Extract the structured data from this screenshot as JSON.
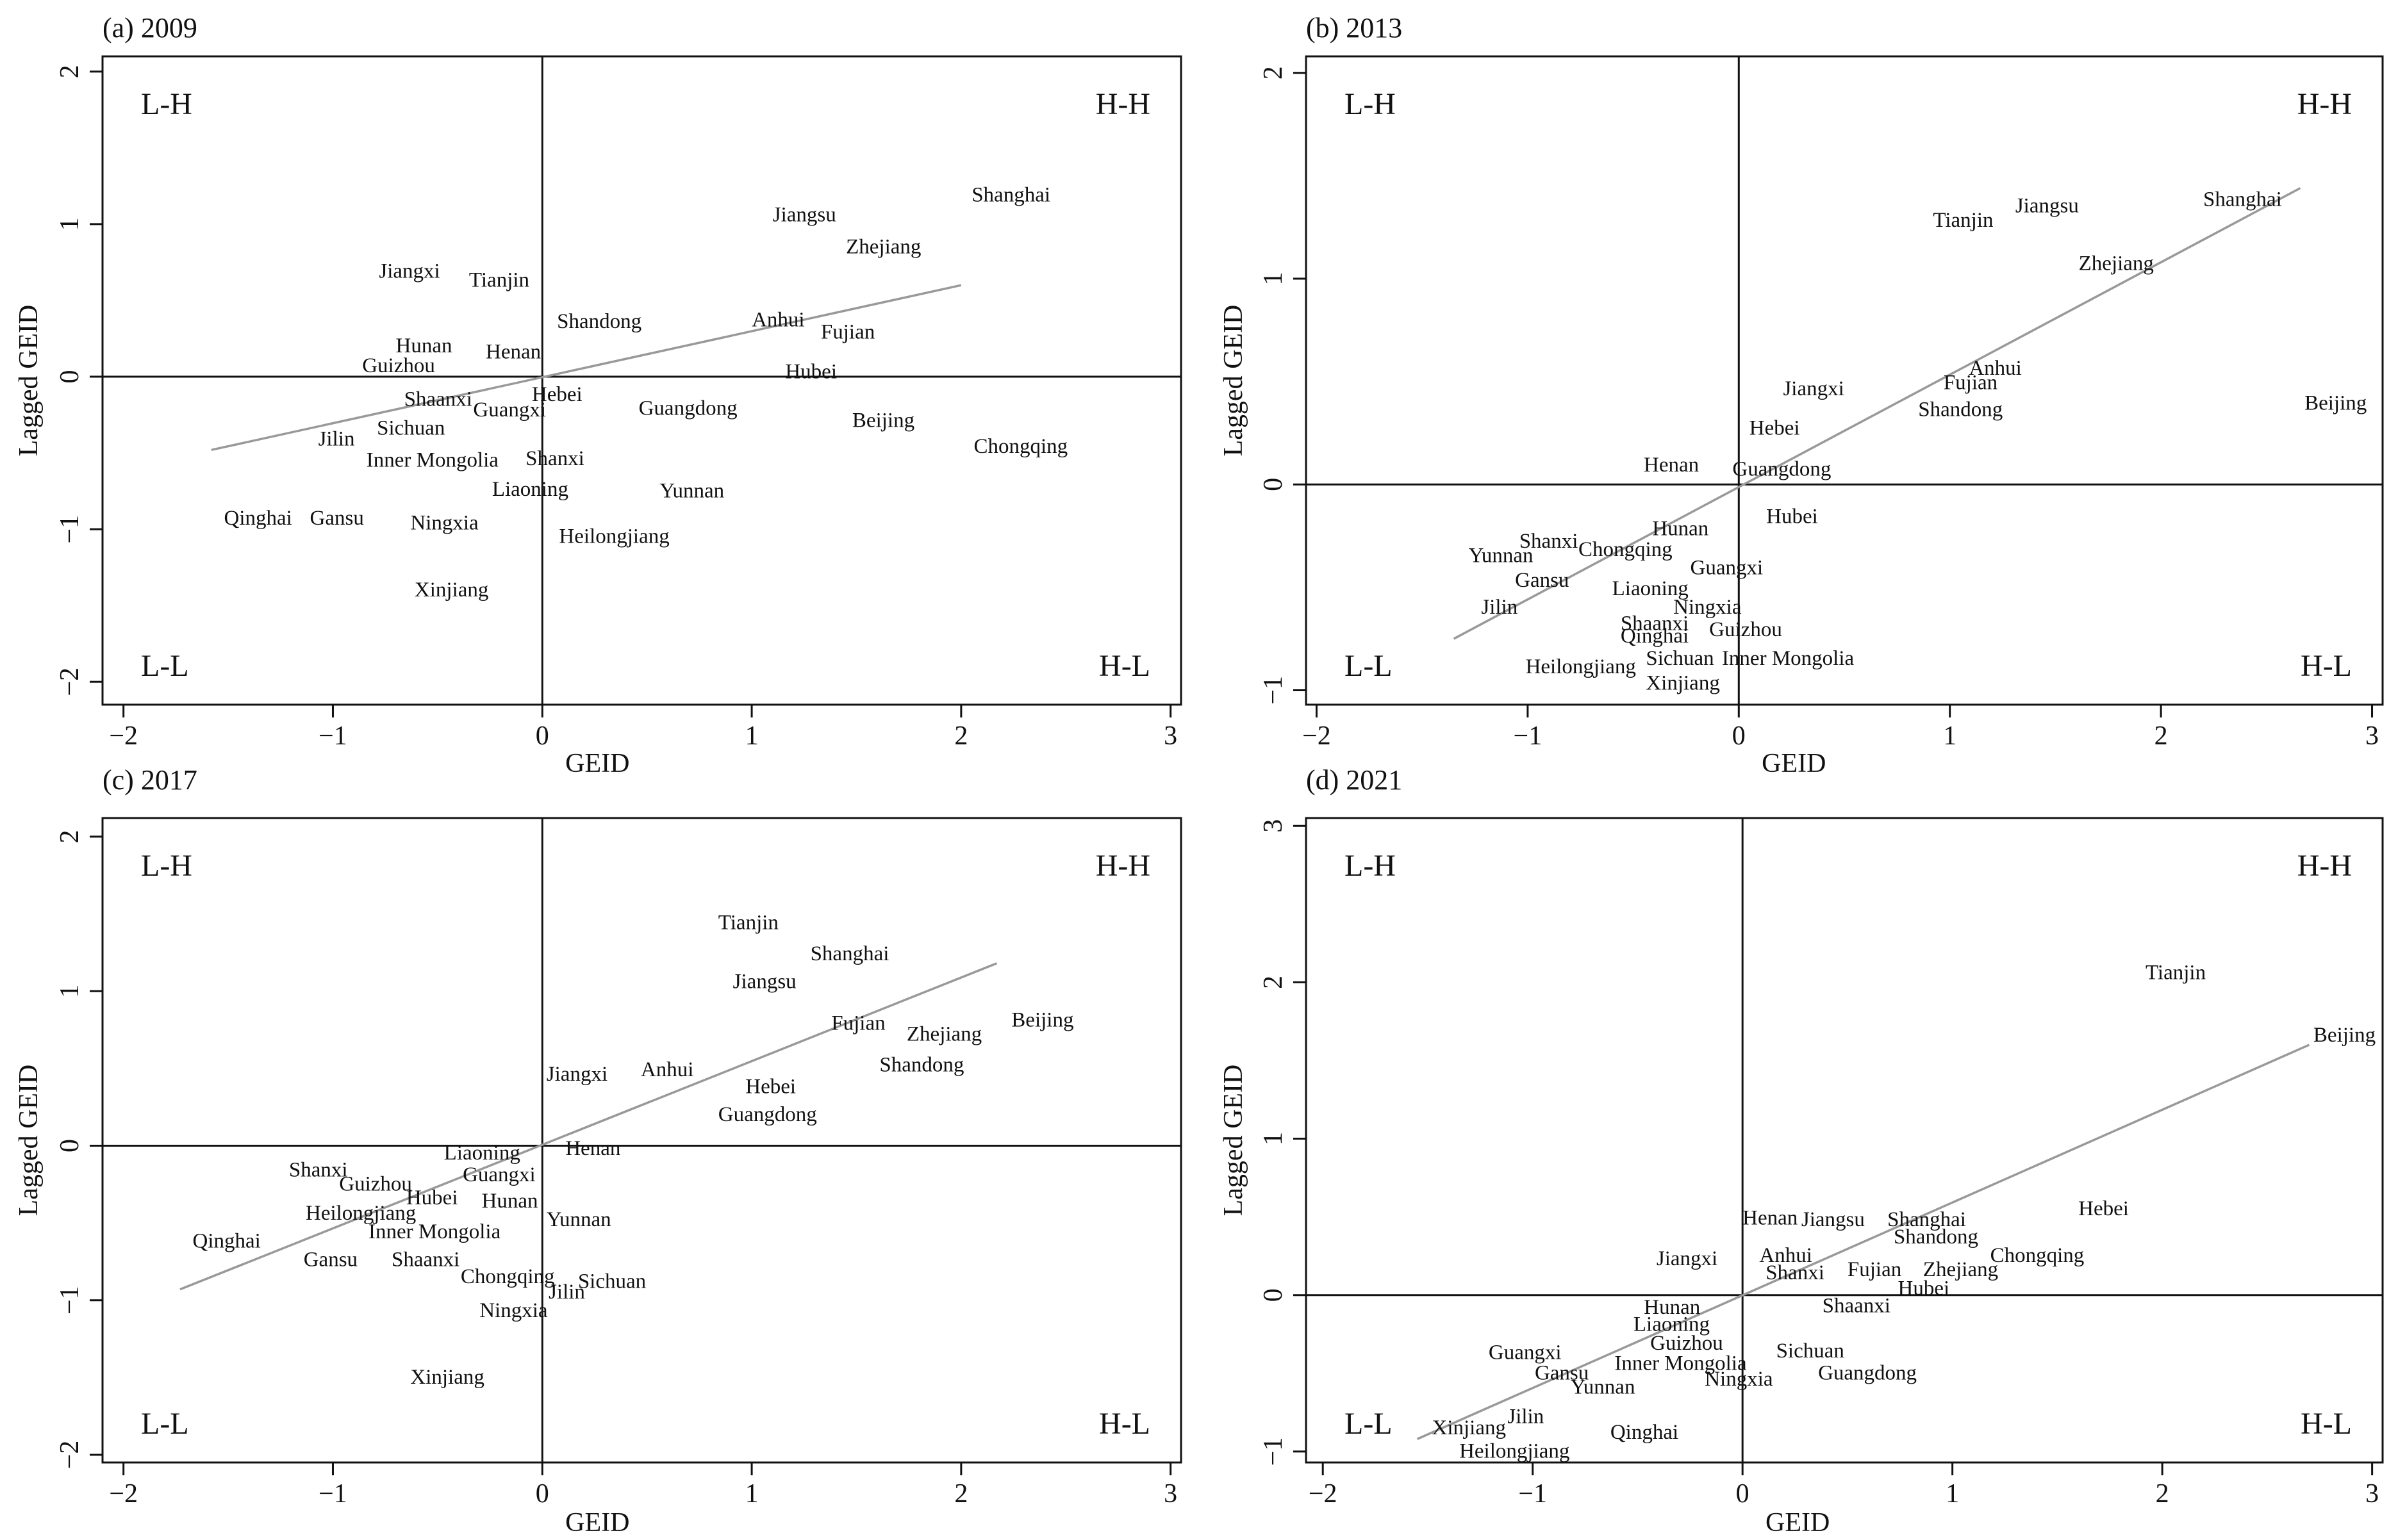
{
  "figure": {
    "x_axis_label": "GEID",
    "y_axis_label": "Lagged GEID",
    "quadrant_labels": {
      "top_left": "L-H",
      "top_right": "H-H",
      "bottom_left": "L-L",
      "bottom_right": "H-L"
    }
  },
  "chart_data": [
    {
      "type": "scatter",
      "title": "(a) 2009",
      "xlabel": "GEID",
      "ylabel": "Lagged GEID",
      "xlim": [
        -2.1,
        3.05
      ],
      "ylim": [
        -2.15,
        2.1
      ],
      "xticks": [
        -2,
        -1,
        0,
        1,
        2,
        3
      ],
      "yticks": [
        -2,
        -1,
        0,
        1,
        2
      ],
      "xtick_labels": [
        "−2",
        "−1",
        "0",
        "1",
        "2",
        "3"
      ],
      "ytick_labels": [
        "−2",
        "−1",
        "0",
        "1",
        "2"
      ],
      "fit_line": {
        "x": [
          -1.58,
          2.0
        ],
        "y": [
          -0.48,
          0.6
        ]
      },
      "points": [
        {
          "label": "Shanghai",
          "x": 2.05,
          "y": 1.2
        },
        {
          "label": "Jiangsu",
          "x": 1.1,
          "y": 1.07
        },
        {
          "label": "Zhejiang",
          "x": 1.45,
          "y": 0.86
        },
        {
          "label": "Jiangxi",
          "x": -0.78,
          "y": 0.7
        },
        {
          "label": "Tianjin",
          "x": -0.35,
          "y": 0.64
        },
        {
          "label": "Shandong",
          "x": 0.07,
          "y": 0.37
        },
        {
          "label": "Anhui",
          "x": 1.0,
          "y": 0.38
        },
        {
          "label": "Fujian",
          "x": 1.33,
          "y": 0.3
        },
        {
          "label": "Hunan",
          "x": -0.7,
          "y": 0.21
        },
        {
          "label": "Henan",
          "x": -0.27,
          "y": 0.17
        },
        {
          "label": "Guizhou",
          "x": -0.86,
          "y": 0.08
        },
        {
          "label": "Hubei",
          "x": 1.16,
          "y": 0.04
        },
        {
          "label": "Shaanxi",
          "x": -0.66,
          "y": -0.14
        },
        {
          "label": "Hebei",
          "x": -0.05,
          "y": -0.11
        },
        {
          "label": "Guangxi",
          "x": -0.33,
          "y": -0.21
        },
        {
          "label": "Guangdong",
          "x": 0.46,
          "y": -0.2
        },
        {
          "label": "Beijing",
          "x": 1.48,
          "y": -0.28
        },
        {
          "label": "Sichuan",
          "x": -0.79,
          "y": -0.33
        },
        {
          "label": "Jilin",
          "x": -1.07,
          "y": -0.4
        },
        {
          "label": "Chongqing",
          "x": 2.06,
          "y": -0.45
        },
        {
          "label": "Inner Mongolia",
          "x": -0.84,
          "y": -0.54
        },
        {
          "label": "Shanxi",
          "x": -0.08,
          "y": -0.53
        },
        {
          "label": "Liaoning",
          "x": -0.24,
          "y": -0.73
        },
        {
          "label": "Yunnan",
          "x": 0.56,
          "y": -0.74
        },
        {
          "label": "Qinghai",
          "x": -1.52,
          "y": -0.92
        },
        {
          "label": "Gansu",
          "x": -1.11,
          "y": -0.92
        },
        {
          "label": "Ningxia",
          "x": -0.63,
          "y": -0.95
        },
        {
          "label": "Heilongjiang",
          "x": 0.08,
          "y": -1.04
        },
        {
          "label": "Xinjiang",
          "x": -0.61,
          "y": -1.39
        }
      ]
    },
    {
      "type": "scatter",
      "title": "(b) 2013",
      "xlabel": "GEID",
      "ylabel": "Lagged GEID",
      "xlim": [
        -2.05,
        3.05
      ],
      "ylim": [
        -1.07,
        2.08
      ],
      "xticks": [
        -2,
        -1,
        0,
        1,
        2,
        3
      ],
      "yticks": [
        -1,
        0,
        1,
        2
      ],
      "xtick_labels": [
        "−2",
        "−1",
        "0",
        "1",
        "2",
        "3"
      ],
      "ytick_labels": [
        "−1",
        "0",
        "1",
        "2"
      ],
      "fit_line": {
        "x": [
          -1.35,
          2.66
        ],
        "y": [
          -0.75,
          1.44
        ]
      },
      "points": [
        {
          "label": "Shanghai",
          "x": 2.2,
          "y": 1.39
        },
        {
          "label": "Jiangsu",
          "x": 1.31,
          "y": 1.36
        },
        {
          "label": "Tianjin",
          "x": 0.92,
          "y": 1.29
        },
        {
          "label": "Zhejiang",
          "x": 1.61,
          "y": 1.08
        },
        {
          "label": "Anhui",
          "x": 1.09,
          "y": 0.57
        },
        {
          "label": "Fujian",
          "x": 0.97,
          "y": 0.5
        },
        {
          "label": "Jiangxi",
          "x": 0.21,
          "y": 0.47
        },
        {
          "label": "Shandong",
          "x": 0.85,
          "y": 0.37
        },
        {
          "label": "Beijing",
          "x": 2.68,
          "y": 0.4
        },
        {
          "label": "Hebei",
          "x": 0.05,
          "y": 0.28
        },
        {
          "label": "Henan",
          "x": -0.45,
          "y": 0.1
        },
        {
          "label": "Guangdong",
          "x": -0.03,
          "y": 0.08
        },
        {
          "label": "Hubei",
          "x": 0.13,
          "y": -0.15
        },
        {
          "label": "Hunan",
          "x": -0.41,
          "y": -0.21
        },
        {
          "label": "Shanxi",
          "x": -1.04,
          "y": -0.27
        },
        {
          "label": "Chongqing",
          "x": -0.76,
          "y": -0.31
        },
        {
          "label": "Yunnan",
          "x": -1.28,
          "y": -0.34
        },
        {
          "label": "Guangxi",
          "x": -0.23,
          "y": -0.4
        },
        {
          "label": "Gansu",
          "x": -1.06,
          "y": -0.46
        },
        {
          "label": "Liaoning",
          "x": -0.6,
          "y": -0.5
        },
        {
          "label": "Ningxia",
          "x": -0.31,
          "y": -0.59
        },
        {
          "label": "Jilin",
          "x": -1.22,
          "y": -0.59
        },
        {
          "label": "Shaanxi",
          "x": -0.56,
          "y": -0.67
        },
        {
          "label": "Guizhou",
          "x": -0.14,
          "y": -0.7
        },
        {
          "label": "Qinghai",
          "x": -0.56,
          "y": -0.73
        },
        {
          "label": "Sichuan",
          "x": -0.44,
          "y": -0.84
        },
        {
          "label": "Inner Mongolia",
          "x": -0.08,
          "y": -0.84
        },
        {
          "label": "Heilongjiang",
          "x": -1.01,
          "y": -0.88
        },
        {
          "label": "Xinjiang",
          "x": -0.44,
          "y": -0.96
        }
      ]
    },
    {
      "type": "scatter",
      "title": "(c) 2017",
      "xlabel": "GEID",
      "ylabel": "Lagged GEID",
      "xlim": [
        -2.1,
        3.05
      ],
      "ylim": [
        -2.05,
        2.12
      ],
      "xticks": [
        -2,
        -1,
        0,
        1,
        2,
        3
      ],
      "yticks": [
        -2,
        -1,
        0,
        1,
        2
      ],
      "xtick_labels": [
        "−2",
        "−1",
        "0",
        "1",
        "2",
        "3"
      ],
      "ytick_labels": [
        "−2",
        "−1",
        "0",
        "1",
        "2"
      ],
      "fit_line": {
        "x": [
          -1.73,
          2.17
        ],
        "y": [
          -0.93,
          1.18
        ]
      },
      "points": [
        {
          "label": "Tianjin",
          "x": 0.84,
          "y": 1.45
        },
        {
          "label": "Shanghai",
          "x": 1.28,
          "y": 1.25
        },
        {
          "label": "Jiangsu",
          "x": 0.91,
          "y": 1.07
        },
        {
          "label": "Fujian",
          "x": 1.38,
          "y": 0.8
        },
        {
          "label": "Beijing",
          "x": 2.24,
          "y": 0.82
        },
        {
          "label": "Zhejiang",
          "x": 1.74,
          "y": 0.73
        },
        {
          "label": "Shandong",
          "x": 1.61,
          "y": 0.53
        },
        {
          "label": "Anhui",
          "x": 0.47,
          "y": 0.5
        },
        {
          "label": "Jiangxi",
          "x": 0.02,
          "y": 0.47
        },
        {
          "label": "Hebei",
          "x": 0.97,
          "y": 0.39
        },
        {
          "label": "Guangdong",
          "x": 0.84,
          "y": 0.21
        },
        {
          "label": "Liaoning",
          "x": -0.47,
          "y": -0.04
        },
        {
          "label": "Henan",
          "x": 0.11,
          "y": -0.01
        },
        {
          "label": "Guangxi",
          "x": -0.38,
          "y": -0.18
        },
        {
          "label": "Shanxi",
          "x": -1.21,
          "y": -0.15
        },
        {
          "label": "Guizhou",
          "x": -0.97,
          "y": -0.24
        },
        {
          "label": "Hubei",
          "x": -0.65,
          "y": -0.33
        },
        {
          "label": "Hunan",
          "x": -0.29,
          "y": -0.35
        },
        {
          "label": "Heilongjiang",
          "x": -1.13,
          "y": -0.43
        },
        {
          "label": "Yunnan",
          "x": 0.02,
          "y": -0.47
        },
        {
          "label": "Inner Mongolia",
          "x": -0.83,
          "y": -0.55
        },
        {
          "label": "Qinghai",
          "x": -1.67,
          "y": -0.61
        },
        {
          "label": "Gansu",
          "x": -1.14,
          "y": -0.73
        },
        {
          "label": "Shaanxi",
          "x": -0.72,
          "y": -0.73
        },
        {
          "label": "Chongqing",
          "x": -0.39,
          "y": -0.84
        },
        {
          "label": "Sichuan",
          "x": 0.17,
          "y": -0.87
        },
        {
          "label": "Jilin",
          "x": 0.03,
          "y": -0.94
        },
        {
          "label": "Ningxia",
          "x": -0.3,
          "y": -1.06
        },
        {
          "label": "Xinjiang",
          "x": -0.63,
          "y": -1.49
        }
      ]
    },
    {
      "type": "scatter",
      "title": "(d) 2021",
      "xlabel": "GEID",
      "ylabel": "Lagged GEID",
      "xlim": [
        -2.08,
        3.05
      ],
      "ylim": [
        -1.07,
        3.05
      ],
      "xticks": [
        -2,
        -1,
        0,
        1,
        2,
        3
      ],
      "yticks": [
        -1,
        0,
        1,
        2,
        3
      ],
      "xtick_labels": [
        "−2",
        "−1",
        "0",
        "1",
        "2",
        "3"
      ],
      "ytick_labels": [
        "−1",
        "0",
        "1",
        "2",
        "3"
      ],
      "fit_line": {
        "x": [
          -1.55,
          2.7
        ],
        "y": [
          -0.92,
          1.6
        ]
      },
      "points": [
        {
          "label": "Tianjin",
          "x": 1.92,
          "y": 2.07
        },
        {
          "label": "Beijing",
          "x": 2.72,
          "y": 1.67
        },
        {
          "label": "Hebei",
          "x": 1.6,
          "y": 0.56
        },
        {
          "label": "Henan",
          "x": 0.0,
          "y": 0.5
        },
        {
          "label": "Jiangsu",
          "x": 0.28,
          "y": 0.49
        },
        {
          "label": "Shanghai",
          "x": 0.69,
          "y": 0.49
        },
        {
          "label": "Shandong",
          "x": 0.72,
          "y": 0.38
        },
        {
          "label": "Chongqing",
          "x": 1.18,
          "y": 0.26
        },
        {
          "label": "Jiangxi",
          "x": -0.41,
          "y": 0.24
        },
        {
          "label": "Anhui",
          "x": 0.08,
          "y": 0.26
        },
        {
          "label": "Shanxi",
          "x": 0.11,
          "y": 0.15
        },
        {
          "label": "Fujian",
          "x": 0.5,
          "y": 0.17
        },
        {
          "label": "Zhejiang",
          "x": 0.86,
          "y": 0.17
        },
        {
          "label": "Hubei",
          "x": 0.74,
          "y": 0.05
        },
        {
          "label": "Shaanxi",
          "x": 0.38,
          "y": -0.06
        },
        {
          "label": "Hunan",
          "x": -0.47,
          "y": -0.07
        },
        {
          "label": "Liaoning",
          "x": -0.52,
          "y": -0.18
        },
        {
          "label": "Guizhou",
          "x": -0.44,
          "y": -0.3
        },
        {
          "label": "Sichuan",
          "x": 0.16,
          "y": -0.35
        },
        {
          "label": "Guangxi",
          "x": -1.21,
          "y": -0.36
        },
        {
          "label": "Inner Mongolia",
          "x": -0.61,
          "y": -0.43
        },
        {
          "label": "Gansu",
          "x": -0.99,
          "y": -0.49
        },
        {
          "label": "Ningxia",
          "x": -0.18,
          "y": -0.53
        },
        {
          "label": "Guangdong",
          "x": 0.36,
          "y": -0.49
        },
        {
          "label": "Yunnan",
          "x": -0.82,
          "y": -0.58
        },
        {
          "label": "Jilin",
          "x": -1.12,
          "y": -0.77
        },
        {
          "label": "Xinjiang",
          "x": -1.48,
          "y": -0.84
        },
        {
          "label": "Qinghai",
          "x": -0.63,
          "y": -0.87
        },
        {
          "label": "Heilongjiang",
          "x": -1.35,
          "y": -0.99
        }
      ]
    }
  ]
}
